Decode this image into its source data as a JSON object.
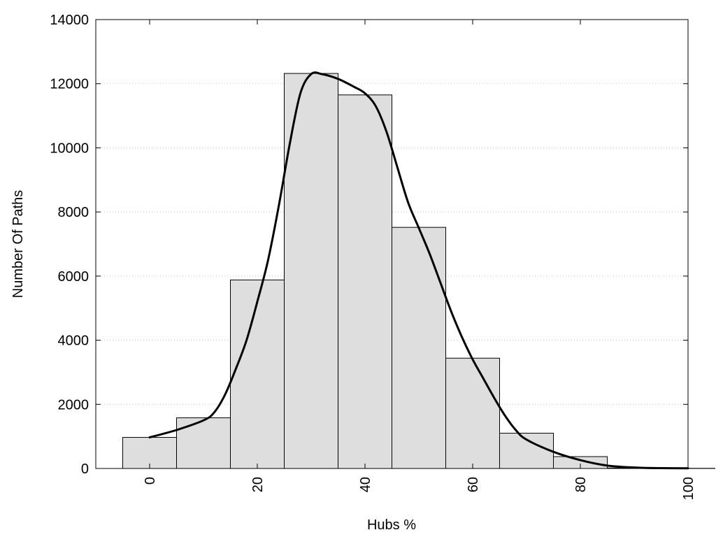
{
  "chart_data": {
    "type": "bar",
    "xlabel": "Hubs %",
    "ylabel": "Number Of Paths",
    "xlim": [
      -10,
      100
    ],
    "ylim": [
      0,
      14000
    ],
    "x_ticks": [
      "0",
      "20",
      "40",
      "60",
      "80",
      "100"
    ],
    "y_ticks": [
      "0",
      "2000",
      "4000",
      "6000",
      "8000",
      "10000",
      "12000",
      "14000"
    ],
    "grid": "horizontal dotted",
    "bin_width": 10,
    "bins": [
      {
        "center": 0,
        "value": 970
      },
      {
        "center": 10,
        "value": 1580
      },
      {
        "center": 20,
        "value": 5880
      },
      {
        "center": 30,
        "value": 12320
      },
      {
        "center": 40,
        "value": 11650
      },
      {
        "center": 50,
        "value": 7520
      },
      {
        "center": 60,
        "value": 3440
      },
      {
        "center": 70,
        "value": 1100
      },
      {
        "center": 80,
        "value": 370
      },
      {
        "center": 90,
        "value": 15
      },
      {
        "center": 100,
        "value": 5
      }
    ],
    "density_curve": [
      {
        "x": 0,
        "y": 970
      },
      {
        "x": 5,
        "y": 1200
      },
      {
        "x": 10,
        "y": 1500
      },
      {
        "x": 12,
        "y": 1750
      },
      {
        "x": 14,
        "y": 2300
      },
      {
        "x": 16,
        "y": 3100
      },
      {
        "x": 18,
        "y": 4000
      },
      {
        "x": 20,
        "y": 5200
      },
      {
        "x": 22,
        "y": 6500
      },
      {
        "x": 24,
        "y": 8200
      },
      {
        "x": 26,
        "y": 10100
      },
      {
        "x": 28,
        "y": 11700
      },
      {
        "x": 30,
        "y": 12300
      },
      {
        "x": 32,
        "y": 12300
      },
      {
        "x": 35,
        "y": 12150
      },
      {
        "x": 38,
        "y": 11900
      },
      {
        "x": 40,
        "y": 11700
      },
      {
        "x": 42,
        "y": 11300
      },
      {
        "x": 44,
        "y": 10500
      },
      {
        "x": 46,
        "y": 9400
      },
      {
        "x": 48,
        "y": 8300
      },
      {
        "x": 50,
        "y": 7500
      },
      {
        "x": 52,
        "y": 6700
      },
      {
        "x": 54,
        "y": 5800
      },
      {
        "x": 56,
        "y": 4900
      },
      {
        "x": 58,
        "y": 4100
      },
      {
        "x": 60,
        "y": 3400
      },
      {
        "x": 62,
        "y": 2800
      },
      {
        "x": 64,
        "y": 2200
      },
      {
        "x": 66,
        "y": 1650
      },
      {
        "x": 68,
        "y": 1200
      },
      {
        "x": 70,
        "y": 900
      },
      {
        "x": 75,
        "y": 520
      },
      {
        "x": 80,
        "y": 260
      },
      {
        "x": 85,
        "y": 90
      },
      {
        "x": 90,
        "y": 30
      },
      {
        "x": 95,
        "y": 10
      },
      {
        "x": 100,
        "y": 5
      }
    ]
  }
}
